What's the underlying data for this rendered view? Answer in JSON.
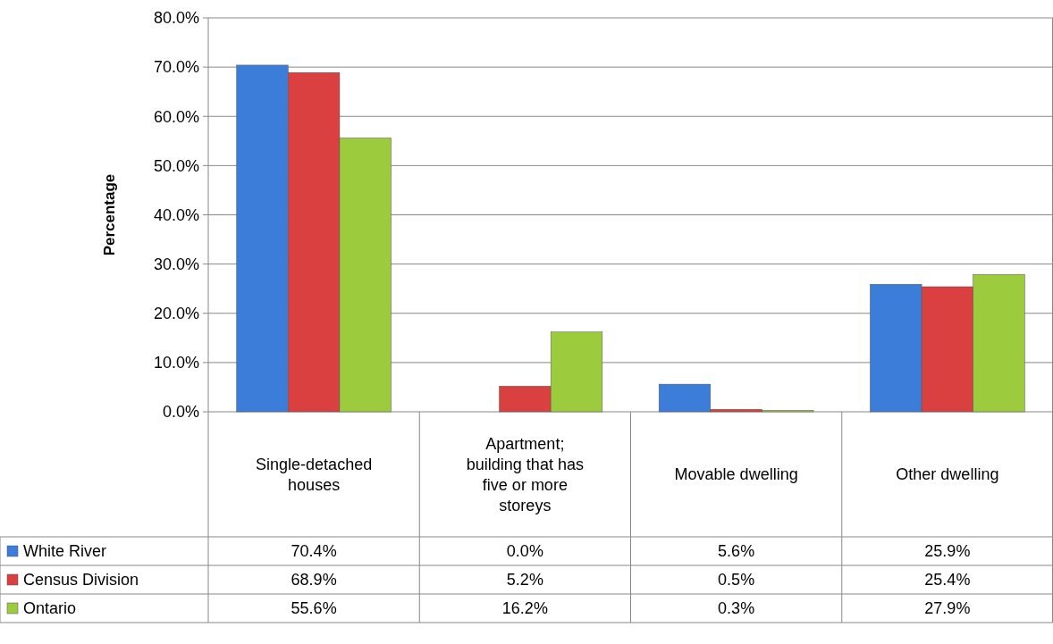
{
  "chart_data": {
    "type": "bar",
    "ylabel": "Percentage",
    "categories": [
      "Single-detached houses",
      "Apartment; building that has five or more storeys",
      "Movable dwelling",
      "Other dwelling"
    ],
    "series": [
      {
        "name": "White River",
        "color": "#3b7dd8",
        "values": [
          70.4,
          0.0,
          5.6,
          25.9
        ],
        "value_labels": [
          "70.4%",
          "0.0%",
          "5.6%",
          "25.9%"
        ]
      },
      {
        "name": "Census Division",
        "color": "#d9403f",
        "values": [
          68.9,
          5.2,
          0.5,
          25.4
        ],
        "value_labels": [
          "68.9%",
          "5.2%",
          "0.5%",
          "25.4%"
        ]
      },
      {
        "name": "Ontario",
        "color": "#9ccb3e",
        "values": [
          55.6,
          16.2,
          0.3,
          27.9
        ],
        "value_labels": [
          "55.6%",
          "16.2%",
          "0.3%",
          "27.9%"
        ]
      }
    ],
    "ylim": [
      0,
      80
    ],
    "yticks": [
      {
        "value": 0,
        "label": "0.0%"
      },
      {
        "value": 10,
        "label": "10.0%"
      },
      {
        "value": 20,
        "label": "20.0%"
      },
      {
        "value": 30,
        "label": "30.0%"
      },
      {
        "value": 40,
        "label": "40.0%"
      },
      {
        "value": 50,
        "label": "50.0%"
      },
      {
        "value": 60,
        "label": "60.0%"
      },
      {
        "value": 70,
        "label": "70.0%"
      },
      {
        "value": 80,
        "label": "80.0%"
      }
    ],
    "grid": "y",
    "legend": "bottom left"
  }
}
